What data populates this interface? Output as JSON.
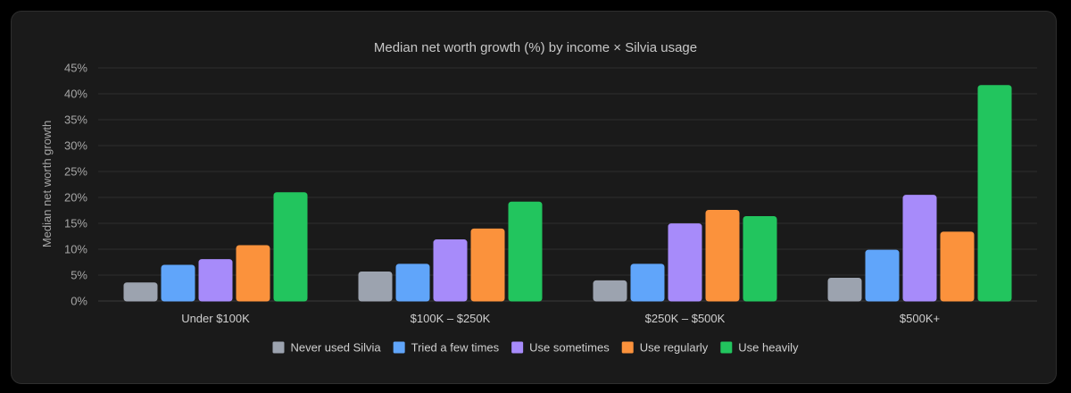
{
  "chart_data": {
    "type": "bar",
    "title": "Median net worth growth (%) by income × Silvia usage",
    "xlabel": "",
    "ylabel": "Median net worth growth",
    "ylim": [
      0,
      45
    ],
    "yticks": [
      "0%",
      "5%",
      "10%",
      "15%",
      "20%",
      "25%",
      "30%",
      "35%",
      "40%",
      "45%"
    ],
    "grid": true,
    "legend_position": "bottom",
    "categories": [
      "Under $100K",
      "$100K – $250K",
      "$250K – $500K",
      "$500K+"
    ],
    "series": [
      {
        "name": "Never used Silvia",
        "color": "#9ca3af",
        "values": [
          3.5,
          5.6,
          3.9,
          4.4
        ]
      },
      {
        "name": "Tried a few times",
        "color": "#60a5fa",
        "values": [
          6.9,
          7.1,
          7.1,
          9.8
        ]
      },
      {
        "name": "Use sometimes",
        "color": "#a78bfa",
        "values": [
          8.0,
          11.8,
          14.9,
          20.4
        ]
      },
      {
        "name": "Use regularly",
        "color": "#fb923c",
        "values": [
          10.7,
          13.9,
          17.5,
          13.3
        ]
      },
      {
        "name": "Use heavily",
        "color": "#22c55e",
        "values": [
          20.9,
          19.1,
          16.3,
          41.6
        ]
      }
    ]
  }
}
